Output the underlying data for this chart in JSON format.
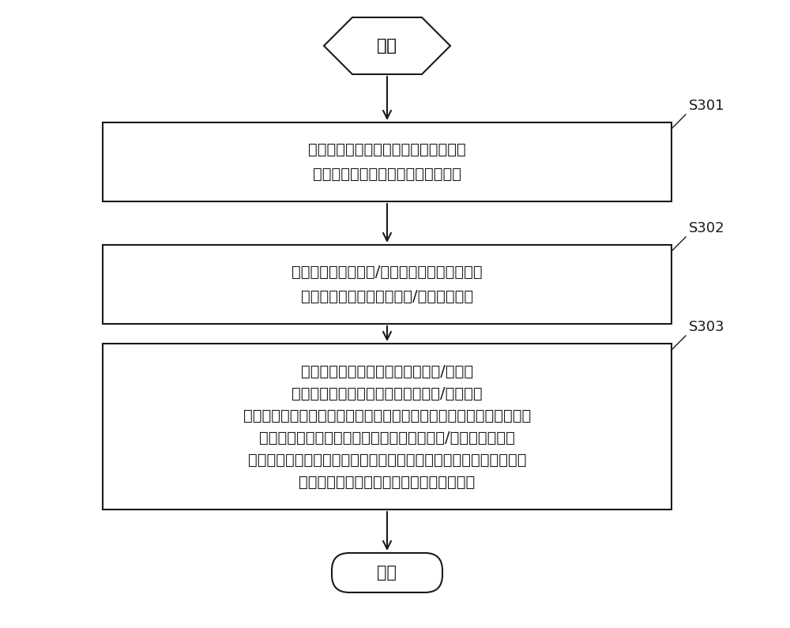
{
  "bg_color": "#ffffff",
  "line_color": "#1a1a1a",
  "text_color": "#1a1a1a",
  "start_label": "开始",
  "end_label": "结束",
  "box1_line1": "获取用户手持操作电子终端时电子终端",
  "box1_line2": "纵中轴线两侧的热量信息或压力信息",
  "box2_line1": "根据所述热量信息和/或压力信息分析比较电子",
  "box2_line2": "终端纵中轴线两侧的热量和/或压力的大小",
  "box3_line1": "当电子终端纵中轴线右侧的热量和/或压力",
  "box3_line2": "大于电子终端纵中轴线左侧的热量和/或压力，",
  "box3_line3": "则分析判断出用户使用右手操作电子终端，启用预设的基于右手的人机",
  "box3_line4": "界面模式；当电子终端纵中轴线左侧的热量和/或压力大于电子",
  "box3_line5": "终端纵中轴线右侧的热量或压力，则分析判断用户使用左手操作电子",
  "box3_line6": "终端，启用预设的基于左手的人机界面模式",
  "label1": "S301",
  "label2": "S302",
  "label3": "S303",
  "font_size_box": 14,
  "font_size_start_end": 15,
  "font_size_label": 13
}
